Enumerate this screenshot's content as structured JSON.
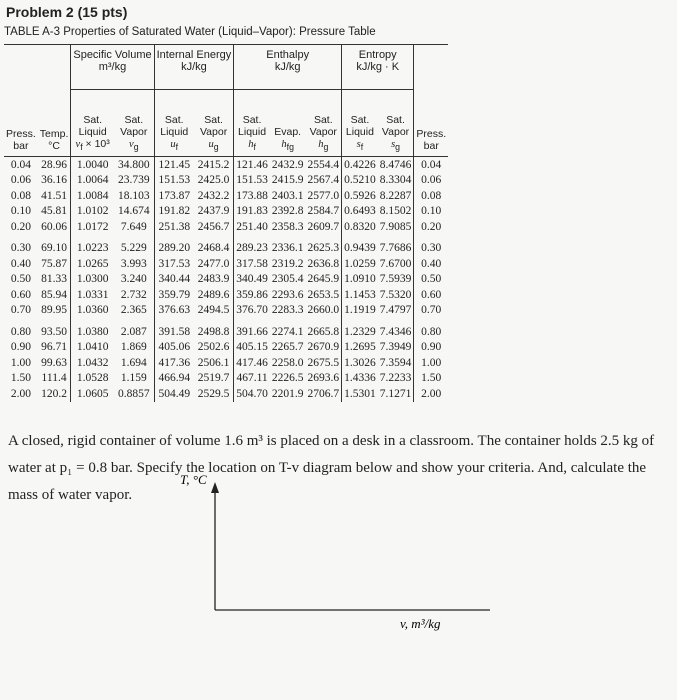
{
  "problem_title": "Problem 2 (15 pts)",
  "table": {
    "caption": "TABLE A-3  Properties of Saturated Water (Liquid–Vapor): Pressure Table",
    "groups": [
      {
        "label": "Specific Volume",
        "unit": "m³/kg"
      },
      {
        "label": "Internal Energy",
        "unit": "kJ/kg"
      },
      {
        "label": "Enthalpy",
        "unit": "kJ/kg"
      },
      {
        "label": "Entropy",
        "unit": "kJ/kg · K"
      }
    ],
    "columns": [
      {
        "lines": [
          "Press.",
          "bar"
        ]
      },
      {
        "lines": [
          "Temp.",
          "°C"
        ]
      },
      {
        "lines": [
          "Sat.",
          "Liquid"
        ],
        "sym": "v",
        "sub": "f",
        "suffix": " × 10³"
      },
      {
        "lines": [
          "Sat.",
          "Vapor"
        ],
        "sym": "v",
        "sub": "g"
      },
      {
        "lines": [
          "Sat.",
          "Liquid"
        ],
        "sym": "u",
        "sub": "f"
      },
      {
        "lines": [
          "Sat.",
          "Vapor"
        ],
        "sym": "u",
        "sub": "g"
      },
      {
        "lines": [
          "Sat.",
          "Liquid"
        ],
        "sym": "h",
        "sub": "f"
      },
      {
        "lines": [
          "Evap."
        ],
        "sym": "h",
        "sub": "fg"
      },
      {
        "lines": [
          "Sat.",
          "Vapor"
        ],
        "sym": "h",
        "sub": "g"
      },
      {
        "lines": [
          "Sat.",
          "Liquid"
        ],
        "sym": "s",
        "sub": "f"
      },
      {
        "lines": [
          "Sat.",
          "Vapor"
        ],
        "sym": "s",
        "sub": "g"
      },
      {
        "lines": [
          "Press.",
          "bar"
        ]
      }
    ],
    "rows": [
      [
        "0.04",
        "28.96",
        "1.0040",
        "34.800",
        "121.45",
        "2415.2",
        "121.46",
        "2432.9",
        "2554.4",
        "0.4226",
        "8.4746",
        "0.04"
      ],
      [
        "0.06",
        "36.16",
        "1.0064",
        "23.739",
        "151.53",
        "2425.0",
        "151.53",
        "2415.9",
        "2567.4",
        "0.5210",
        "8.3304",
        "0.06"
      ],
      [
        "0.08",
        "41.51",
        "1.0084",
        "18.103",
        "173.87",
        "2432.2",
        "173.88",
        "2403.1",
        "2577.0",
        "0.5926",
        "8.2287",
        "0.08"
      ],
      [
        "0.10",
        "45.81",
        "1.0102",
        "14.674",
        "191.82",
        "2437.9",
        "191.83",
        "2392.8",
        "2584.7",
        "0.6493",
        "8.1502",
        "0.10"
      ],
      [
        "0.20",
        "60.06",
        "1.0172",
        "7.649",
        "251.38",
        "2456.7",
        "251.40",
        "2358.3",
        "2609.7",
        "0.8320",
        "7.9085",
        "0.20"
      ],
      [
        "0.30",
        "69.10",
        "1.0223",
        "5.229",
        "289.20",
        "2468.4",
        "289.23",
        "2336.1",
        "2625.3",
        "0.9439",
        "7.7686",
        "0.30"
      ],
      [
        "0.40",
        "75.87",
        "1.0265",
        "3.993",
        "317.53",
        "2477.0",
        "317.58",
        "2319.2",
        "2636.8",
        "1.0259",
        "7.6700",
        "0.40"
      ],
      [
        "0.50",
        "81.33",
        "1.0300",
        "3.240",
        "340.44",
        "2483.9",
        "340.49",
        "2305.4",
        "2645.9",
        "1.0910",
        "7.5939",
        "0.50"
      ],
      [
        "0.60",
        "85.94",
        "1.0331",
        "2.732",
        "359.79",
        "2489.6",
        "359.86",
        "2293.6",
        "2653.5",
        "1.1453",
        "7.5320",
        "0.60"
      ],
      [
        "0.70",
        "89.95",
        "1.0360",
        "2.365",
        "376.63",
        "2494.5",
        "376.70",
        "2283.3",
        "2660.0",
        "1.1919",
        "7.4797",
        "0.70"
      ],
      [
        "0.80",
        "93.50",
        "1.0380",
        "2.087",
        "391.58",
        "2498.8",
        "391.66",
        "2274.1",
        "2665.8",
        "1.2329",
        "7.4346",
        "0.80"
      ],
      [
        "0.90",
        "96.71",
        "1.0410",
        "1.869",
        "405.06",
        "2502.6",
        "405.15",
        "2265.7",
        "2670.9",
        "1.2695",
        "7.3949",
        "0.90"
      ],
      [
        "1.00",
        "99.63",
        "1.0432",
        "1.694",
        "417.36",
        "2506.1",
        "417.46",
        "2258.0",
        "2675.5",
        "1.3026",
        "7.3594",
        "1.00"
      ],
      [
        "1.50",
        "111.4",
        "1.0528",
        "1.159",
        "466.94",
        "2519.7",
        "467.11",
        "2226.5",
        "2693.6",
        "1.4336",
        "7.2233",
        "1.50"
      ],
      [
        "2.00",
        "120.2",
        "1.0605",
        "0.8857",
        "504.49",
        "2529.5",
        "504.70",
        "2201.9",
        "2706.7",
        "1.5301",
        "7.1271",
        "2.00"
      ]
    ]
  },
  "problem_text": "A closed, rigid container of volume 1.6 m³ is placed on a desk in a classroom. The container holds 2.5 kg of water at p₁ = 0.8 bar. Specify the location on T-v diagram below and show your criteria. And, calculate the mass of water vapor.",
  "diagram": {
    "y_label": "T, °C",
    "x_label": "v, m³/kg"
  }
}
